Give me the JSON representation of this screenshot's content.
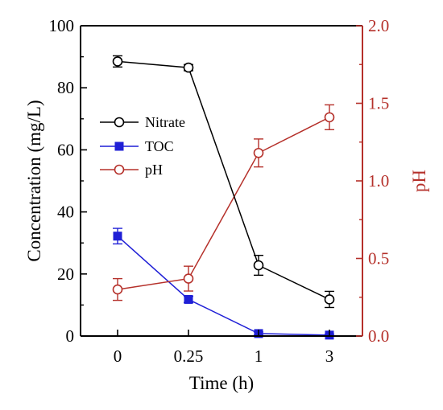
{
  "chart_data": {
    "type": "line",
    "categories": [
      "0",
      "0.25",
      "1",
      "3"
    ],
    "xlabel": "Time (h)",
    "ylabel": "Concentration (mg/L)",
    "y2label": "pH",
    "ylim": [
      0,
      100
    ],
    "y2lim": [
      0,
      2.0
    ],
    "yticks": [
      "0",
      "20",
      "40",
      "60",
      "80",
      "100"
    ],
    "y2ticks": [
      "0.0",
      "0.5",
      "1.0",
      "1.5",
      "2.0"
    ],
    "legend_position": "upper-left",
    "series": [
      {
        "name": "Nitrate",
        "axis": "left",
        "marker": "open-circle",
        "color": "#000000",
        "values": [
          88.5,
          86.5,
          22.8,
          11.8
        ],
        "errors": [
          1.8,
          1.0,
          3.2,
          2.6
        ]
      },
      {
        "name": "TOC",
        "axis": "left",
        "marker": "filled-square",
        "color": "#1f1fd6",
        "values": [
          32.2,
          11.8,
          0.8,
          0.3
        ],
        "errors": [
          2.5,
          1.0,
          0.5,
          0.3
        ]
      },
      {
        "name": "pH",
        "axis": "right",
        "marker": "open-circle",
        "color": "#b5302a",
        "values": [
          0.3,
          0.37,
          1.18,
          1.41
        ],
        "errors": [
          0.07,
          0.08,
          0.09,
          0.08
        ]
      }
    ]
  }
}
